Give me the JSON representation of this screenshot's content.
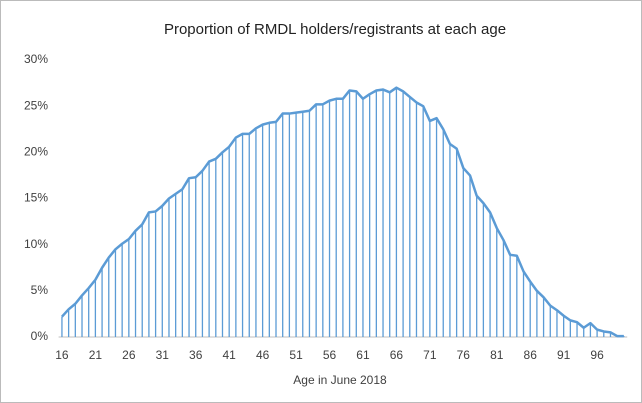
{
  "chart_data": {
    "type": "bar-line",
    "title": "Proportion of RMDL holders/registrants at each age",
    "x_label": "Age in June 2018",
    "categories": [
      "16",
      null,
      null,
      null,
      null,
      "21",
      null,
      null,
      null,
      null,
      "26",
      null,
      null,
      null,
      null,
      "31",
      null,
      null,
      null,
      null,
      "36",
      null,
      null,
      null,
      null,
      "41",
      null,
      null,
      null,
      null,
      "46",
      null,
      null,
      null,
      null,
      "51",
      null,
      null,
      null,
      null,
      "56",
      null,
      null,
      null,
      null,
      "61",
      null,
      null,
      null,
      null,
      "66",
      null,
      null,
      null,
      null,
      "71",
      null,
      null,
      null,
      null,
      "76",
      null,
      null,
      null,
      null,
      "81",
      null,
      null,
      null,
      null,
      "86",
      null,
      null,
      null,
      null,
      "91",
      null,
      null,
      null,
      null,
      "96",
      null,
      null,
      null,
      null
    ],
    "values": [
      2.2,
      3.0,
      3.6,
      4.5,
      5.3,
      6.2,
      7.5,
      8.6,
      9.5,
      10.1,
      10.6,
      11.5,
      12.2,
      13.5,
      13.6,
      14.2,
      15.0,
      15.5,
      16.0,
      17.2,
      17.3,
      18.0,
      19.0,
      19.3,
      20.0,
      20.6,
      21.6,
      22.0,
      22.0,
      22.6,
      23.0,
      23.2,
      23.3,
      24.2,
      24.2,
      24.3,
      24.4,
      24.5,
      25.2,
      25.2,
      25.6,
      25.8,
      25.8,
      26.7,
      26.6,
      25.8,
      26.3,
      26.7,
      26.8,
      26.5,
      27.0,
      26.6,
      26.0,
      25.4,
      25.0,
      23.4,
      23.7,
      22.5,
      20.9,
      20.4,
      18.3,
      17.5,
      15.3,
      14.5,
      13.5,
      11.8,
      10.5,
      8.9,
      8.8,
      7.1,
      6.0,
      5.0,
      4.3,
      3.4,
      2.9,
      2.3,
      1.8,
      1.6,
      1.0,
      1.5,
      0.8,
      0.6,
      0.5,
      0.1,
      0.1
    ],
    "color": "#5b9bd5",
    "ylim": [
      0,
      30
    ],
    "yticks": [
      {
        "value": 0,
        "label": "0%"
      },
      {
        "value": 5,
        "label": "5%"
      },
      {
        "value": 10,
        "label": "10%"
      },
      {
        "value": 15,
        "label": "15%"
      },
      {
        "value": 20,
        "label": "20%"
      },
      {
        "value": 25,
        "label": "25%"
      },
      {
        "value": 30,
        "label": "30%"
      }
    ],
    "grid": false
  }
}
